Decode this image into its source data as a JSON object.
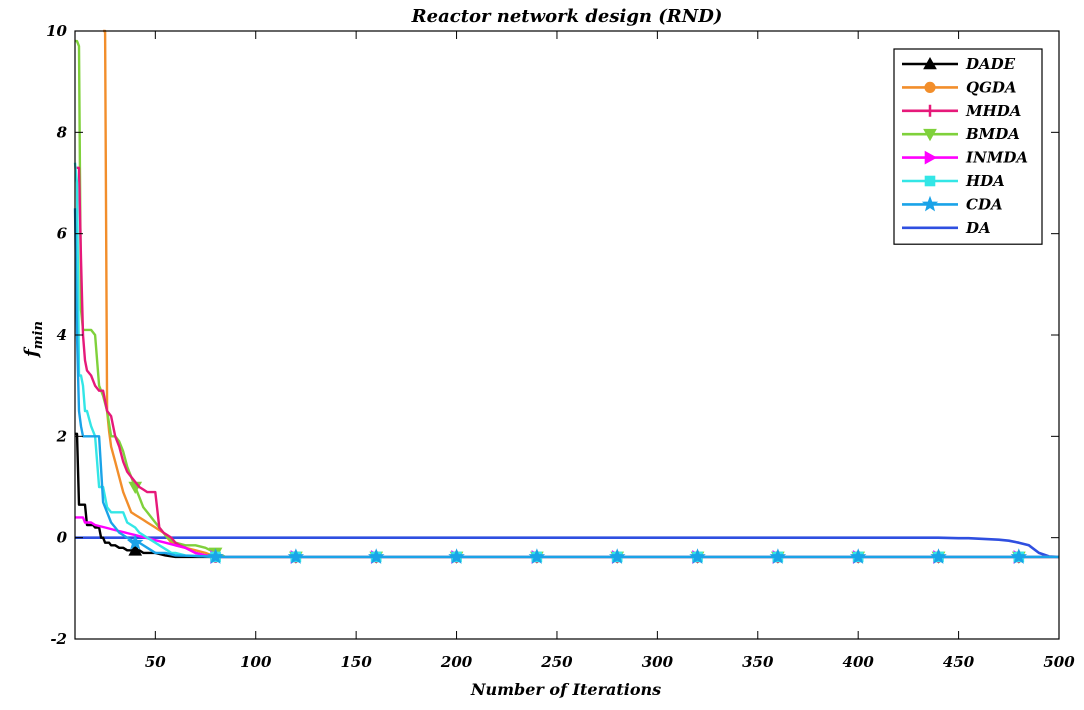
{
  "chart_data": {
    "type": "line",
    "title": "Reactor network design (RND)",
    "xlabel": "Number of Iterations",
    "ylabel_main": "f",
    "ylabel_sub": "min",
    "xlim": [
      10,
      500
    ],
    "ylim": [
      -2,
      10
    ],
    "xticks": [
      50,
      100,
      150,
      200,
      250,
      300,
      350,
      400,
      450,
      500
    ],
    "yticks": [
      -2,
      0,
      2,
      4,
      6,
      8,
      10
    ],
    "grid": false,
    "legend_position": "top-right",
    "series": [
      {
        "name": "DADE",
        "color": "#000000",
        "marker": "triangle-up",
        "markers_x": [
          40
        ],
        "x": [
          10,
          11,
          12,
          13,
          14,
          15,
          16,
          17,
          18,
          19,
          20,
          21,
          22,
          23,
          24,
          25,
          26,
          27,
          28,
          30,
          32,
          34,
          36,
          38,
          40,
          42,
          44,
          46,
          48,
          50,
          55,
          60,
          500
        ],
        "y": [
          2.05,
          2.05,
          0.65,
          0.65,
          0.65,
          0.65,
          0.25,
          0.25,
          0.25,
          0.25,
          0.2,
          0.2,
          0.2,
          0.0,
          0.0,
          -0.1,
          -0.1,
          -0.1,
          -0.15,
          -0.15,
          -0.2,
          -0.2,
          -0.25,
          -0.25,
          -0.25,
          -0.25,
          -0.3,
          -0.3,
          -0.3,
          -0.3,
          -0.35,
          -0.38,
          -0.38
        ]
      },
      {
        "name": "QGDA",
        "color": "#f28e2b",
        "marker": "circle",
        "markers_x": [
          80,
          120,
          160,
          200,
          240,
          280,
          320,
          360,
          400,
          440,
          480
        ],
        "x": [
          10,
          20,
          22,
          24,
          25,
          26,
          27,
          28,
          30,
          32,
          34,
          36,
          38,
          40,
          42,
          44,
          46,
          48,
          50,
          52,
          54,
          56,
          58,
          60,
          65,
          70,
          75,
          80,
          500
        ],
        "y": [
          null,
          null,
          null,
          10.0,
          10.0,
          2.5,
          2.1,
          1.8,
          1.5,
          1.2,
          0.9,
          0.7,
          0.5,
          0.45,
          0.4,
          0.35,
          0.3,
          0.25,
          0.2,
          0.15,
          0.1,
          0.0,
          -0.1,
          -0.15,
          -0.2,
          -0.25,
          -0.3,
          -0.38,
          -0.38
        ]
      },
      {
        "name": "MHDA",
        "color": "#e6197a",
        "marker": "plus",
        "markers_x": [
          80,
          120,
          160,
          200,
          240,
          280,
          320,
          360,
          400,
          440,
          480
        ],
        "x": [
          10,
          12,
          13,
          14,
          15,
          16,
          18,
          20,
          22,
          24,
          26,
          28,
          30,
          32,
          34,
          36,
          38,
          40,
          42,
          44,
          46,
          48,
          50,
          52,
          54,
          56,
          58,
          60,
          62,
          65,
          70,
          75,
          80,
          500
        ],
        "y": [
          7.3,
          7.3,
          5.5,
          4.0,
          3.5,
          3.3,
          3.2,
          3.0,
          2.9,
          2.9,
          2.5,
          2.4,
          2.0,
          1.8,
          1.5,
          1.3,
          1.2,
          1.1,
          1.0,
          0.95,
          0.9,
          0.9,
          0.9,
          0.2,
          0.1,
          0.05,
          0.0,
          -0.1,
          -0.15,
          -0.2,
          -0.3,
          -0.35,
          -0.38,
          -0.38
        ]
      },
      {
        "name": "BMDA",
        "color": "#7fd13b",
        "marker": "triangle-down",
        "markers_x": [
          40,
          80,
          120,
          160,
          200,
          240,
          280,
          320,
          360,
          400,
          440,
          480
        ],
        "x": [
          10,
          11,
          12,
          13,
          14,
          15,
          16,
          18,
          20,
          22,
          24,
          26,
          28,
          30,
          32,
          34,
          36,
          38,
          40,
          42,
          44,
          46,
          48,
          50,
          52,
          54,
          56,
          58,
          60,
          65,
          70,
          75,
          80,
          85,
          500
        ],
        "y": [
          9.8,
          9.8,
          9.7,
          4.5,
          4.1,
          4.1,
          4.1,
          4.1,
          4.0,
          3.0,
          2.8,
          2.5,
          2.0,
          2.0,
          1.9,
          1.7,
          1.4,
          1.2,
          1.0,
          0.8,
          0.6,
          0.5,
          0.4,
          0.3,
          0.2,
          0.1,
          0.0,
          -0.05,
          -0.1,
          -0.15,
          -0.15,
          -0.2,
          -0.3,
          -0.38,
          -0.38
        ]
      },
      {
        "name": "INMDA",
        "color": "#ff00ff",
        "marker": "triangle-right",
        "markers_x": [
          80,
          120,
          160,
          200,
          240,
          280,
          320,
          360,
          400,
          440,
          480
        ],
        "x": [
          10,
          12,
          14,
          15,
          16,
          18,
          20,
          25,
          30,
          35,
          40,
          45,
          50,
          55,
          60,
          65,
          70,
          75,
          80,
          500
        ],
        "y": [
          0.4,
          0.4,
          0.4,
          0.3,
          0.3,
          0.3,
          0.25,
          0.2,
          0.15,
          0.1,
          0.05,
          0.0,
          -0.05,
          -0.1,
          -0.15,
          -0.2,
          -0.3,
          -0.35,
          -0.38,
          -0.38
        ]
      },
      {
        "name": "HDA",
        "color": "#33e6e6",
        "marker": "square",
        "markers_x": [
          80,
          120,
          160,
          200,
          240,
          280,
          320,
          360,
          400,
          440,
          480
        ],
        "x": [
          10,
          11,
          12,
          13,
          14,
          15,
          16,
          18,
          20,
          22,
          24,
          26,
          28,
          30,
          32,
          34,
          36,
          38,
          40,
          42,
          44,
          46,
          48,
          50,
          52,
          54,
          56,
          58,
          60,
          62,
          65,
          70,
          80,
          500
        ],
        "y": [
          7.4,
          7.0,
          3.2,
          3.2,
          3.0,
          2.5,
          2.5,
          2.2,
          2.0,
          1.0,
          1.0,
          0.6,
          0.5,
          0.5,
          0.5,
          0.5,
          0.3,
          0.25,
          0.2,
          0.1,
          0.05,
          0.0,
          -0.05,
          -0.1,
          -0.15,
          -0.2,
          -0.25,
          -0.3,
          -0.3,
          -0.32,
          -0.35,
          -0.36,
          -0.38,
          -0.38
        ]
      },
      {
        "name": "CDA",
        "color": "#1aa3e8",
        "marker": "star",
        "markers_x": [
          40,
          80,
          120,
          160,
          200,
          240,
          280,
          320,
          360,
          400,
          440,
          480
        ],
        "x": [
          10,
          11,
          12,
          13,
          14,
          15,
          16,
          18,
          20,
          22,
          24,
          26,
          28,
          30,
          32,
          34,
          36,
          38,
          40,
          42,
          44,
          46,
          48,
          50,
          55,
          60,
          70,
          80,
          500
        ],
        "y": [
          6.5,
          4.0,
          2.5,
          2.2,
          2.0,
          2.0,
          2.0,
          2.0,
          2.0,
          2.0,
          0.7,
          0.5,
          0.3,
          0.2,
          0.1,
          0.05,
          0.0,
          -0.05,
          -0.1,
          -0.1,
          -0.15,
          -0.2,
          -0.25,
          -0.3,
          -0.3,
          -0.35,
          -0.36,
          -0.38,
          -0.38
        ]
      },
      {
        "name": "DA",
        "color": "#2f4fe0",
        "marker": "none",
        "markers_x": [],
        "x": [
          10,
          100,
          200,
          300,
          400,
          440,
          450,
          455,
          460,
          465,
          470,
          475,
          480,
          485,
          490,
          495,
          500
        ],
        "y": [
          0.0,
          0.0,
          0.0,
          0.0,
          0.0,
          0.0,
          -0.01,
          -0.01,
          -0.02,
          -0.03,
          -0.04,
          -0.06,
          -0.1,
          -0.15,
          -0.3,
          -0.37,
          -0.38
        ]
      }
    ]
  }
}
